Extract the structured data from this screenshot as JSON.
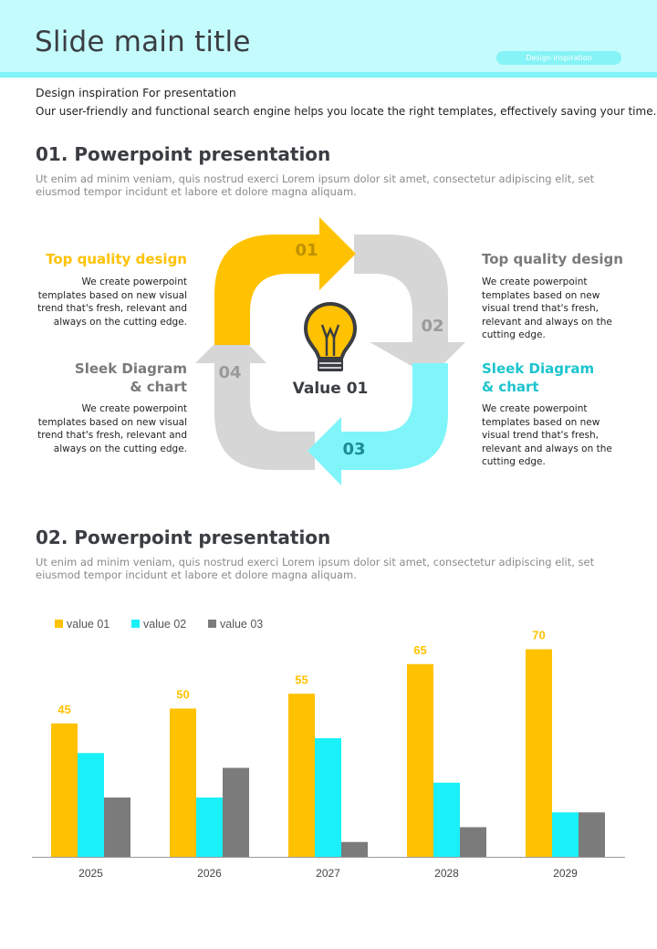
{
  "header": {
    "title": "Slide main title",
    "pill": "Design inspiration"
  },
  "intro": {
    "title": "Design inspiration For presentation",
    "body": "Our user-friendly and functional search engine helps you locate the right templates, effectively saving your time."
  },
  "section1": {
    "title": "01. Powerpoint presentation",
    "body": "Ut enim ad minim veniam, quis nostrud exerci  Lorem ipsum dolor sit amet, consectetur adipiscing elit, set eiusmod tempor incidunt et labore et dolore magna aliquam."
  },
  "diagram": {
    "center_label": "Value 01",
    "steps": [
      "01",
      "02",
      "03",
      "04"
    ],
    "colors": {
      "yellow": "#ffc200",
      "gray": "#d6d6d6",
      "cyan": "#7ff5fa",
      "icon": "#3a3d42"
    },
    "icon": "lightbulb-icon",
    "blocks": [
      {
        "title1": "Top quality design",
        "title2": "",
        "color": "#ffc200",
        "desc": "We create powerpoint templates based on new visual trend that's fresh, relevant and always on the cutting edge."
      },
      {
        "title1": "Top quality design",
        "title2": "",
        "color": "#7a7a7a",
        "desc": "We create powerpoint templates based on new visual trend that's fresh, relevant and always on the cutting edge."
      },
      {
        "title1": "Sleek Diagram",
        "title2": "& chart",
        "color": "#7a7a7a",
        "desc": "We create powerpoint templates based on new visual trend that's fresh, relevant and always on the cutting edge."
      },
      {
        "title1": "Sleek Diagram",
        "title2": "& chart",
        "color": "#1cc4cf",
        "desc": "We create powerpoint templates based on new visual trend that's fresh, relevant and always on the cutting edge."
      }
    ]
  },
  "section2": {
    "title": "02. Powerpoint presentation",
    "body": "Ut enim ad minim veniam, quis nostrud exerci  Lorem ipsum dolor sit amet, consectetur adipiscing elit, set eiusmod tempor incidunt et labore et dolore magna aliquam."
  },
  "chart_data": {
    "type": "bar",
    "categories": [
      "2025",
      "2026",
      "2027",
      "2028",
      "2029"
    ],
    "series": [
      {
        "name": "value 01",
        "color": "#ffc200",
        "values": [
          45,
          50,
          55,
          65,
          70
        ],
        "show_labels": true
      },
      {
        "name": "value 02",
        "color": "#19f0f8",
        "values": [
          35,
          20,
          40,
          25,
          15
        ],
        "show_labels": false
      },
      {
        "name": "value 03",
        "color": "#7b7b7b",
        "values": [
          20,
          30,
          5,
          10,
          15
        ],
        "show_labels": false
      }
    ],
    "ylim": [
      0,
      80
    ],
    "legend": "top-left",
    "grid": false,
    "title": "",
    "xlabel": "",
    "ylabel": ""
  }
}
